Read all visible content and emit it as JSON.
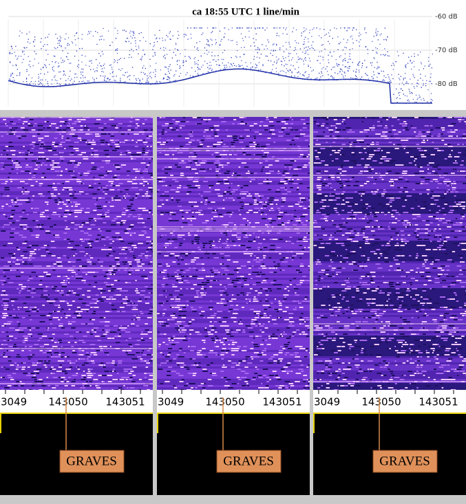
{
  "header": {
    "title": "ca 18:55 UTC  1 line/min",
    "db_labels": [
      "-60 dB",
      "-70 dB",
      "-80 dB"
    ]
  },
  "panels": [
    {
      "freq_labels": [
        "3049",
        "143050",
        "143051"
      ],
      "marker": "GRAVES"
    },
    {
      "freq_labels": [
        "3049",
        "143050",
        "143051"
      ],
      "marker": "GRAVES"
    },
    {
      "freq_labels": [
        "3049",
        "143050",
        "143051"
      ],
      "marker": "GRAVES"
    }
  ]
}
